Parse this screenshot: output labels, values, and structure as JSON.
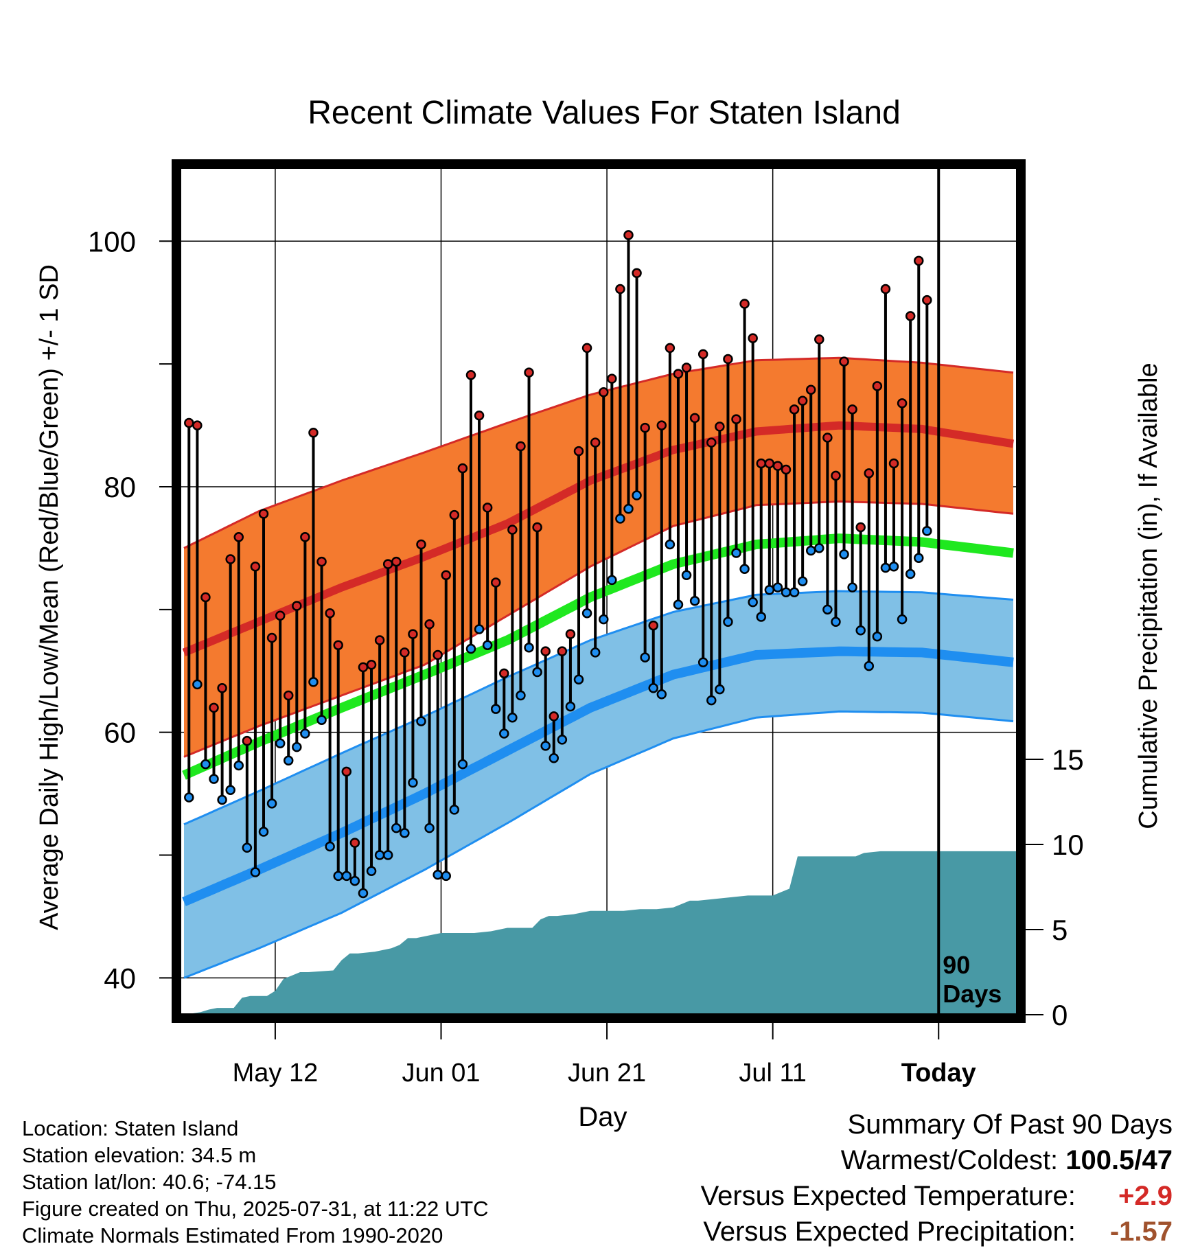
{
  "chart_data": {
    "type": "line",
    "title": "Recent Climate Values For Staten Island",
    "xlabel": "Day",
    "ylabel_left": "Average Daily High/Low/Mean (Red/Blue/Green) +/- 1 SD",
    "ylabel_right": "Cumulative Precipitation (in), If Available",
    "x_ticks": [
      {
        "day": 12,
        "label": "May 12"
      },
      {
        "day": 32,
        "label": "Jun 01"
      },
      {
        "day": 52,
        "label": "Jun 21"
      },
      {
        "day": 72,
        "label": "Jul 11"
      },
      {
        "day": 92,
        "label": "Today"
      }
    ],
    "x_range": [
      0.5,
      101.5
    ],
    "y_left_ticks": [
      40,
      60,
      80,
      100
    ],
    "y_left_range": [
      37,
      106
    ],
    "y_right_ticks": [
      0,
      5,
      10,
      15
    ],
    "today_day": 92,
    "today_label": "90\nDays",
    "normal_high": {
      "days": [
        1,
        10,
        20,
        30,
        40,
        50,
        60,
        70,
        80,
        90,
        101
      ],
      "mean": [
        66.5,
        69.0,
        71.8,
        74.3,
        77.0,
        80.5,
        83.0,
        84.5,
        85.0,
        84.7,
        83.5
      ],
      "upper": [
        75.0,
        78.0,
        80.5,
        82.8,
        85.2,
        87.5,
        89.2,
        90.3,
        90.5,
        90.1,
        89.3
      ],
      "lower": [
        58.0,
        60.5,
        63.0,
        65.5,
        69.5,
        73.5,
        76.8,
        78.5,
        78.8,
        78.6,
        77.8
      ]
    },
    "normal_mean": {
      "days": [
        1,
        10,
        20,
        30,
        40,
        50,
        60,
        70,
        80,
        90,
        101
      ],
      "values": [
        56.5,
        59.2,
        62.0,
        64.7,
        67.5,
        71.0,
        73.7,
        75.3,
        75.8,
        75.5,
        74.6
      ]
    },
    "normal_low": {
      "days": [
        1,
        10,
        20,
        30,
        40,
        50,
        60,
        70,
        80,
        90,
        101
      ],
      "mean": [
        46.2,
        48.8,
        51.8,
        55.0,
        58.5,
        62.0,
        64.7,
        66.3,
        66.6,
        66.5,
        65.7
      ],
      "upper": [
        52.5,
        55.2,
        58.3,
        61.3,
        64.5,
        67.5,
        69.8,
        71.2,
        71.5,
        71.4,
        70.8
      ],
      "lower": [
        40.0,
        42.4,
        45.3,
        48.8,
        52.6,
        56.6,
        59.5,
        61.2,
        61.7,
        61.6,
        60.9
      ]
    },
    "daily": {
      "highs": [
        85.2,
        85.0,
        71.0,
        62.0,
        63.6,
        74.1,
        75.9,
        59.3,
        73.5,
        77.8,
        67.7,
        69.5,
        63.0,
        70.3,
        75.9,
        84.4,
        73.9,
        69.7,
        67.1,
        56.8,
        51.0,
        65.3,
        65.5,
        67.5,
        73.7,
        73.9,
        66.5,
        68.0,
        75.3,
        68.8,
        66.3,
        72.8,
        77.7,
        81.5,
        89.1,
        85.8,
        78.3,
        72.2,
        64.8,
        76.5,
        83.3,
        89.3,
        76.7,
        66.6,
        61.3,
        66.6,
        68.0,
        82.9,
        91.3,
        83.6,
        87.7,
        88.8,
        96.1,
        100.5,
        97.4,
        84.8,
        68.7,
        85.0,
        91.3,
        89.2,
        89.7,
        85.6,
        90.8,
        83.6,
        84.9,
        90.4,
        85.5,
        94.9,
        92.1,
        81.9,
        81.9,
        81.7,
        81.4,
        86.3,
        87.0,
        87.9,
        92.0,
        84.0,
        80.9,
        90.2,
        86.3,
        76.7,
        81.1,
        88.2,
        96.1,
        81.9,
        86.8,
        93.9,
        98.4,
        95.2
      ],
      "lows": [
        54.7,
        63.9,
        57.4,
        56.2,
        54.5,
        55.3,
        57.3,
        50.6,
        48.6,
        51.9,
        54.2,
        59.1,
        57.7,
        58.8,
        59.9,
        64.1,
        61.0,
        50.7,
        48.3,
        48.3,
        47.9,
        46.9,
        48.7,
        50.0,
        50.0,
        52.2,
        51.8,
        55.9,
        60.9,
        52.2,
        48.4,
        48.3,
        53.7,
        57.4,
        66.8,
        68.4,
        67.1,
        61.9,
        59.9,
        61.2,
        63.0,
        66.9,
        64.9,
        58.9,
        57.9,
        59.4,
        62.1,
        64.3,
        69.7,
        66.5,
        69.2,
        72.4,
        77.4,
        78.2,
        79.3,
        66.1,
        63.6,
        63.1,
        75.3,
        70.4,
        72.8,
        70.7,
        65.7,
        62.6,
        63.5,
        69.0,
        74.6,
        73.3,
        70.6,
        69.4,
        71.6,
        71.8,
        71.4,
        71.4,
        72.3,
        74.8,
        75.0,
        70.0,
        69.0,
        74.5,
        71.8,
        68.3,
        65.4,
        67.8,
        73.4,
        73.5,
        69.2,
        72.9,
        74.2,
        76.4
      ]
    },
    "precip": {
      "days": [
        1,
        3,
        4,
        5,
        7,
        8,
        9,
        11,
        12,
        13,
        14,
        15,
        16,
        19,
        20,
        21,
        22,
        24,
        26,
        27,
        28,
        29,
        30,
        32,
        34,
        36,
        38,
        40,
        41,
        43,
        44,
        45,
        46,
        48,
        50,
        51,
        54,
        56,
        58,
        60,
        62,
        63,
        65,
        67,
        69,
        71,
        72,
        74,
        75,
        81,
        82,
        83,
        85,
        87,
        91,
        101.5
      ],
      "values": [
        0.0,
        0.15,
        0.3,
        0.4,
        0.4,
        1.0,
        1.1,
        1.1,
        1.4,
        2.1,
        2.3,
        2.5,
        2.5,
        2.6,
        3.2,
        3.6,
        3.6,
        3.7,
        3.9,
        4.1,
        4.5,
        4.5,
        4.6,
        4.8,
        4.8,
        4.8,
        4.9,
        5.1,
        5.1,
        5.1,
        5.6,
        5.8,
        5.8,
        5.9,
        6.1,
        6.1,
        6.1,
        6.2,
        6.2,
        6.3,
        6.7,
        6.7,
        6.8,
        6.9,
        7.0,
        7.0,
        7.0,
        7.4,
        9.3,
        9.3,
        9.3,
        9.5,
        9.6,
        9.6,
        9.6,
        9.6
      ]
    },
    "colors": {
      "high_band": "#f47a2f",
      "high_line": "#d42a27",
      "low_band": "#80c0e6",
      "low_line": "#1f8ef0",
      "mean_line": "#1fe81f",
      "precip": "#4899a5",
      "high_dot": "#d42a27",
      "low_dot": "#1f8ef0"
    }
  },
  "footer": {
    "location": "Location: Staten Island",
    "elevation": "Station elevation: 34.5 m",
    "latlon": "Station lat/lon: 40.6; -74.15",
    "created": "Figure created on Thu, 2025-07-31, at 11:22 UTC",
    "normals": "Climate Normals Estimated From 1990-2020"
  },
  "summary": {
    "heading": "Summary Of Past 90 Days",
    "warmest_label": "Warmest/Coldest:",
    "warmest_value": "100.5/47",
    "temp_label": "Versus Expected Temperature:",
    "temp_value": "+2.9",
    "temp_color": "#d42a27",
    "precip_label": "Versus Expected Precipitation:",
    "precip_value": "-1.57",
    "precip_color": "#a0522d"
  }
}
